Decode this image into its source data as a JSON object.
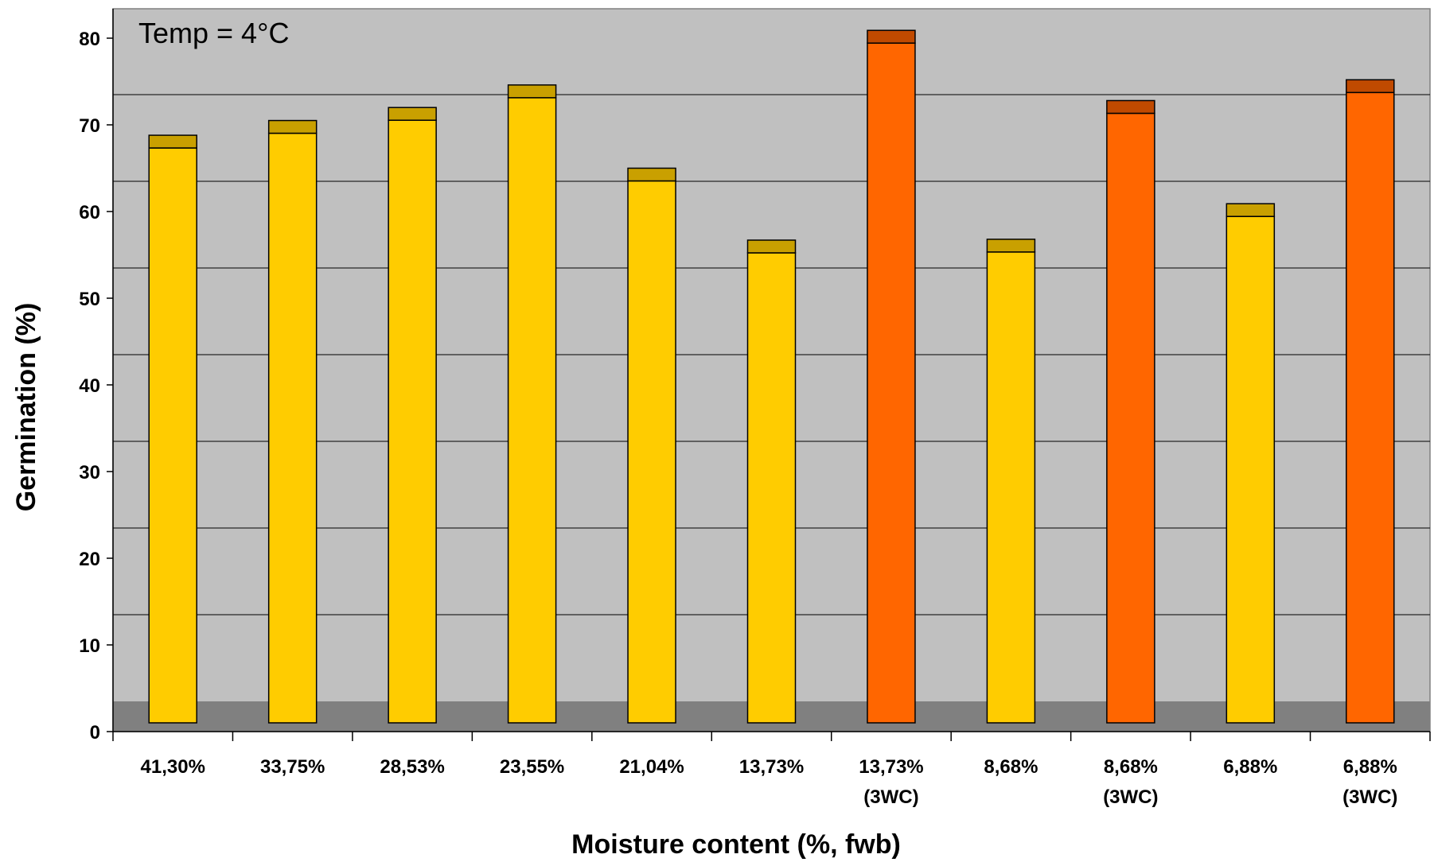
{
  "chart_data": {
    "type": "bar",
    "annotation": "Temp = 4°C",
    "xlabel": "Moisture content (%, fwb)",
    "ylabel": "Germination (%)",
    "ylim": [
      0,
      80
    ],
    "yticks": [
      "0",
      "10",
      "20",
      "30",
      "40",
      "50",
      "60",
      "70",
      "80"
    ],
    "grid": true,
    "categories": [
      [
        "41,30%"
      ],
      [
        "33,75%"
      ],
      [
        "28,53%"
      ],
      [
        "23,55%"
      ],
      [
        "21,04%"
      ],
      [
        "13,73%"
      ],
      [
        "13,73%",
        "(3WC)"
      ],
      [
        "8,68%"
      ],
      [
        "8,68%",
        "(3WC)"
      ],
      [
        "6,88%"
      ],
      [
        "6,88%",
        "(3WC)"
      ]
    ],
    "values": [
      68.8,
      70.5,
      72.0,
      74.6,
      65.0,
      56.7,
      80.9,
      56.8,
      72.8,
      60.9,
      75.2
    ],
    "colors": {
      "standard": "#FFCC00",
      "standard_top": "#C9A000",
      "threeWC": "#FF6600",
      "threeWC_top": "#C04A00",
      "plot_bg": "#C0C0C0",
      "floor": "#808080"
    },
    "series_types": [
      "standard",
      "standard",
      "standard",
      "standard",
      "standard",
      "standard",
      "threeWC",
      "standard",
      "threeWC",
      "standard",
      "threeWC"
    ]
  }
}
